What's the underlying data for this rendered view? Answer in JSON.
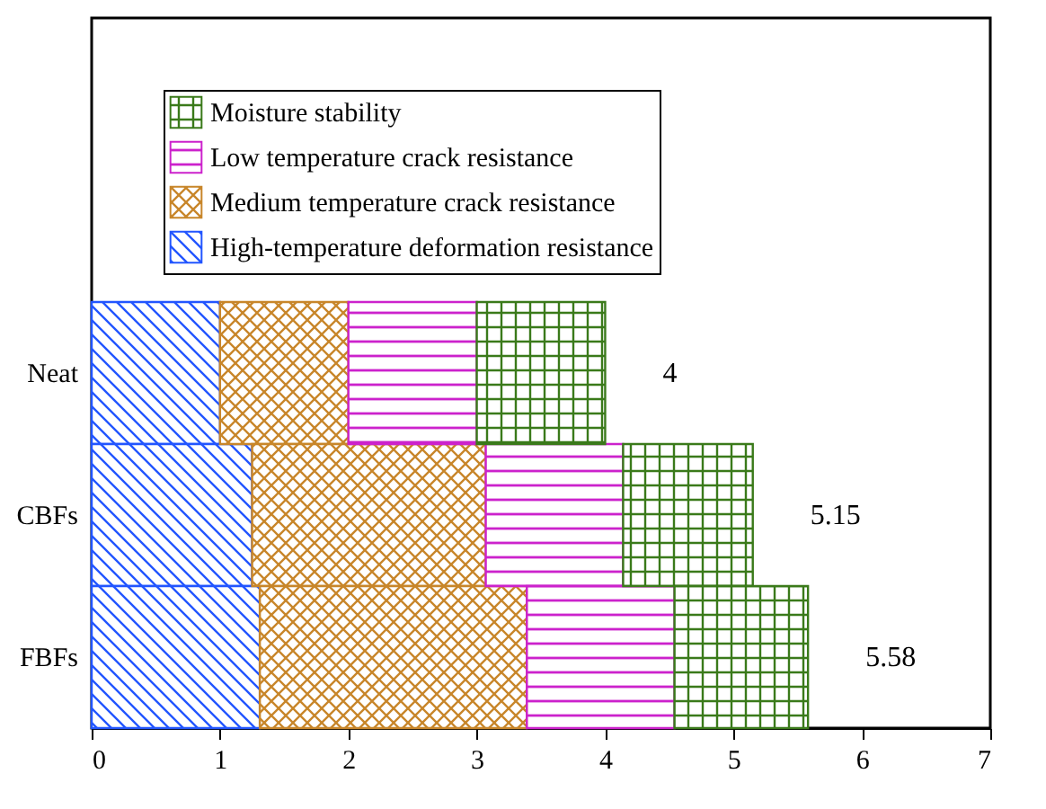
{
  "chart_data": {
    "type": "bar",
    "orientation": "horizontal",
    "stacked": true,
    "categories": [
      "Neat",
      "CBFs",
      "FBFs"
    ],
    "series": [
      {
        "name": "High-temperature deformation resistance",
        "color": "#2255ff",
        "values": [
          1,
          1.25,
          1.31
        ]
      },
      {
        "name": "Medium temperature crack resistance",
        "color": "#c8862a",
        "values": [
          1,
          1.82,
          2.08
        ]
      },
      {
        "name": "Low temperature crack resistance",
        "color": "#cc22cc",
        "values": [
          1,
          1.07,
          1.15
        ]
      },
      {
        "name": "Moisture stability",
        "color": "#3a7a1a",
        "values": [
          1,
          1.01,
          1.04
        ]
      }
    ],
    "totals": [
      "4",
      "5.15",
      "5.58"
    ],
    "xlim": [
      0,
      7
    ],
    "xticks": [
      0,
      1,
      2,
      3,
      4,
      5,
      6,
      7
    ],
    "legend": "top left",
    "grid": false
  }
}
